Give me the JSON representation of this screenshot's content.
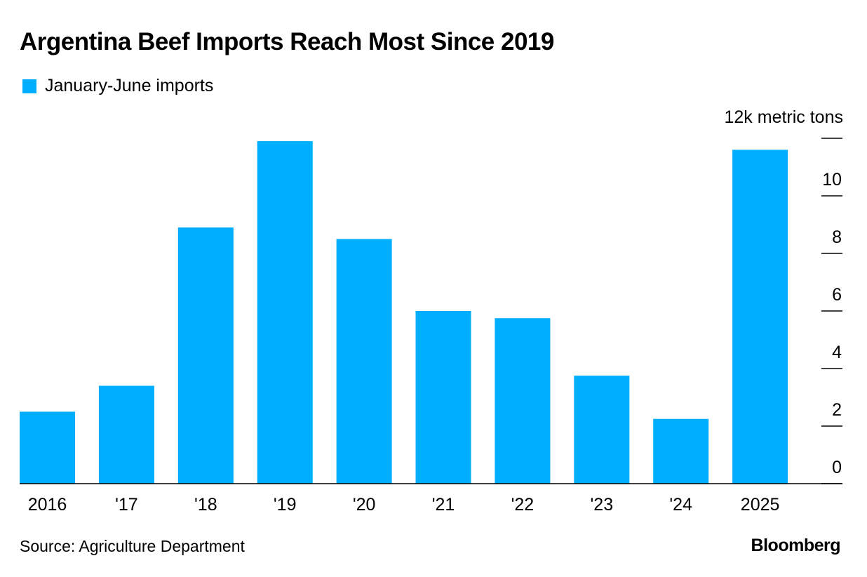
{
  "title": "Argentina Beef Imports Reach Most Since 2019",
  "legend": {
    "label": "January-June imports"
  },
  "unit_label": "12k metric tons",
  "source": "Source: Agriculture Department",
  "brand": "Bloomberg",
  "colors": {
    "bar": "#00AEFF",
    "axis": "#000000"
  },
  "chart_data": {
    "type": "bar",
    "title": "Argentina Beef Imports Reach Most Since 2019",
    "categories": [
      "2016",
      "'17",
      "'18",
      "'19",
      "'20",
      "'21",
      "'22",
      "'23",
      "'24",
      "2025"
    ],
    "series": [
      {
        "name": "January-June imports",
        "values": [
          2.5,
          3.4,
          8.9,
          11.9,
          8.5,
          6.0,
          5.75,
          3.75,
          2.25,
          11.6
        ]
      }
    ],
    "ylim": [
      0,
      12
    ],
    "yticks": [
      0,
      2,
      4,
      6,
      8,
      10,
      12
    ],
    "ytick_labels": [
      "0",
      "2",
      "4",
      "6",
      "8",
      "10",
      ""
    ],
    "ylabel": "",
    "xlabel": "",
    "legend_position": "top-left",
    "grid": false
  }
}
